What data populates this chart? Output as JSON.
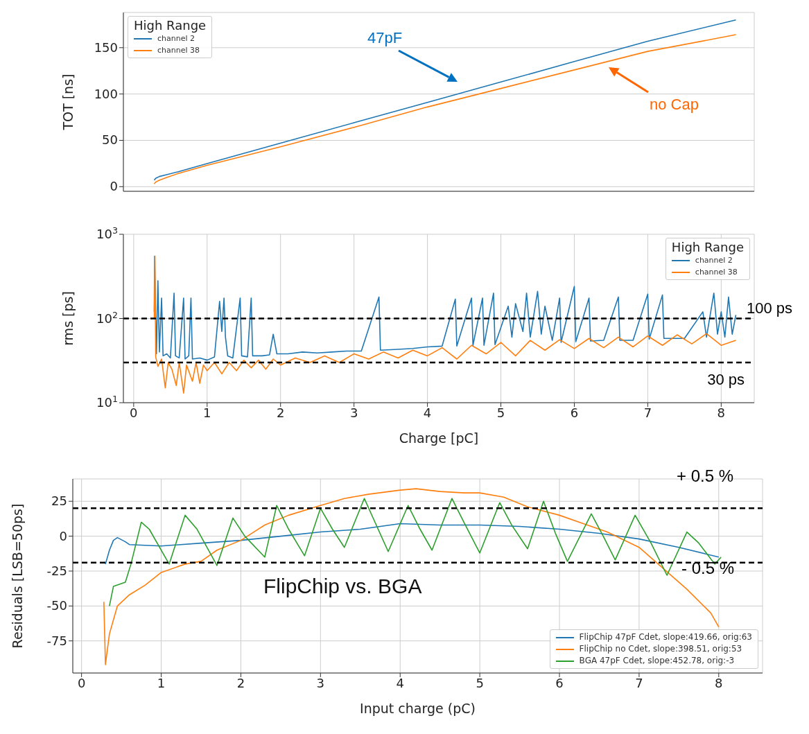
{
  "chart_data": [
    {
      "type": "line",
      "ylabel": "TOT [ns]",
      "legend_title": "High Range",
      "legend": "top left",
      "grid": true,
      "tick_labels": "y",
      "marker": "none",
      "xlim": [
        -0.14,
        8.45
      ],
      "xticks": [
        0,
        1,
        2,
        3,
        4,
        5,
        6,
        7,
        8
      ],
      "ylim": [
        -5,
        188
      ],
      "yticks": [
        0,
        50,
        100,
        150
      ],
      "series": [
        {
          "name": "channel 2",
          "color": "#1f77b4",
          "x": [
            0.28,
            0.3,
            0.35,
            0.45,
            0.6,
            1,
            2,
            3,
            4,
            5,
            6,
            7,
            8.2
          ],
          "values": [
            7,
            9,
            11,
            13,
            16,
            25,
            47,
            69,
            91,
            113,
            135,
            157,
            180
          ]
        },
        {
          "name": "channel 38",
          "color": "#ff7f0e",
          "x": [
            0.28,
            0.3,
            0.35,
            0.45,
            0.6,
            1,
            2,
            3,
            4,
            5,
            6,
            7,
            8.2
          ],
          "values": [
            3,
            5,
            7,
            10,
            14,
            23,
            43,
            64,
            86,
            106,
            126,
            146,
            164
          ]
        }
      ],
      "annotations": [
        "47pF",
        "no Cap"
      ]
    },
    {
      "type": "line",
      "xlabel": "Charge [pC]",
      "ylabel": "rms [ps]",
      "legend_title": "High Range",
      "legend": "top right",
      "grid": true,
      "log": "y",
      "marker": "none",
      "xlim": [
        -0.14,
        8.45
      ],
      "xticks": [
        0,
        1,
        2,
        3,
        4,
        5,
        6,
        7,
        8
      ],
      "ylim": [
        10,
        1000
      ],
      "yticks": [
        {
          "value": 10,
          "label": "10$^{1}$"
        },
        {
          "value": 100,
          "label": "10$^{2}$"
        },
        {
          "value": 1000,
          "label": "10$^{3}$"
        }
      ],
      "series": [
        {
          "name": "channel 2",
          "color": "#1f77b4",
          "x": [
            0.28,
            0.285,
            0.3,
            0.31,
            0.33,
            0.35,
            0.38,
            0.4,
            0.45,
            0.5,
            0.55,
            0.57,
            0.62,
            0.68,
            0.7,
            0.75,
            0.78,
            0.8,
            0.9,
            1.0,
            1.1,
            1.17,
            1.2,
            1.23,
            1.25,
            1.28,
            1.35,
            1.45,
            1.47,
            1.55,
            1.6,
            1.62,
            1.75,
            1.85,
            1.9,
            1.95,
            2.1,
            2.3,
            2.5,
            2.7,
            2.9,
            3.1,
            3.34,
            3.36,
            3.6,
            3.8,
            4.0,
            4.2,
            4.38,
            4.4,
            4.6,
            4.62,
            4.75,
            4.77,
            4.9,
            4.92,
            5.1,
            5.15,
            5.2,
            5.3,
            5.35,
            5.4,
            5.5,
            5.55,
            5.6,
            5.7,
            5.8,
            5.82,
            6.0,
            6.02,
            6.2,
            6.22,
            6.4,
            6.6,
            6.62,
            6.8,
            7.0,
            7.02,
            7.2,
            7.22,
            7.5,
            7.75,
            7.8,
            7.9,
            7.95,
            8.0,
            8.05,
            8.1,
            8.15,
            8.2
          ],
          "values": [
            120,
            550,
            100,
            38,
            280,
            40,
            175,
            36,
            38,
            34,
            200,
            36,
            34,
            175,
            33,
            36,
            175,
            33,
            34,
            32,
            35,
            160,
            70,
            175,
            60,
            36,
            34,
            175,
            36,
            35,
            175,
            36,
            36,
            37,
            65,
            38,
            38,
            40,
            39,
            40,
            41,
            41,
            180,
            42,
            43,
            44,
            46,
            47,
            170,
            47,
            175,
            48,
            175,
            48,
            200,
            49,
            140,
            60,
            150,
            70,
            200,
            60,
            210,
            65,
            140,
            55,
            175,
            52,
            240,
            53,
            175,
            54,
            55,
            180,
            55,
            55,
            195,
            57,
            190,
            58,
            58,
            120,
            60,
            200,
            65,
            120,
            60,
            180,
            65,
            110
          ]
        },
        {
          "name": "channel 38",
          "color": "#ff7f0e",
          "x": [
            0.28,
            0.29,
            0.3,
            0.33,
            0.38,
            0.43,
            0.47,
            0.52,
            0.58,
            0.62,
            0.68,
            0.72,
            0.8,
            0.85,
            0.9,
            0.95,
            1.0,
            1.1,
            1.2,
            1.3,
            1.4,
            1.5,
            1.6,
            1.7,
            1.8,
            1.9,
            2.0,
            2.2,
            2.4,
            2.6,
            2.8,
            3.0,
            3.2,
            3.4,
            3.6,
            3.8,
            4.0,
            4.2,
            4.4,
            4.6,
            4.8,
            5.0,
            5.2,
            5.4,
            5.6,
            5.8,
            6.0,
            6.2,
            6.4,
            6.6,
            6.8,
            7.0,
            7.2,
            7.4,
            7.6,
            7.8,
            8.0,
            8.2
          ],
          "values": [
            100,
            550,
            35,
            27,
            33,
            15,
            30,
            25,
            16,
            30,
            13,
            28,
            18,
            30,
            17,
            28,
            24,
            30,
            22,
            30,
            24,
            32,
            26,
            32,
            25,
            33,
            28,
            34,
            30,
            36,
            30,
            38,
            33,
            40,
            34,
            42,
            36,
            45,
            33,
            48,
            38,
            52,
            36,
            55,
            42,
            56,
            44,
            58,
            45,
            60,
            46,
            62,
            48,
            64,
            50,
            66,
            48,
            55
          ]
        }
      ],
      "ref_lines": [
        {
          "axis": "y",
          "value": 100,
          "label": "100 ps",
          "color": "#000000",
          "line_style": "dashed"
        },
        {
          "axis": "y",
          "value": 30,
          "label": "30 ps",
          "color": "#000000",
          "line_style": "dashed"
        }
      ]
    },
    {
      "type": "line",
      "xlabel": "Input charge (pC)",
      "ylabel": "Residuals [LSB=50ps]",
      "legend": "bottom right",
      "grid": true,
      "marker": "none",
      "xlim": [
        -0.11,
        8.55
      ],
      "xticks": [
        0,
        1,
        2,
        3,
        4,
        5,
        6,
        7,
        8
      ],
      "ylim": [
        -98,
        41
      ],
      "yticks": [
        -75,
        -50,
        -25,
        0,
        25
      ],
      "series": [
        {
          "name": "FlipChip 47pF Cdet, slope:419.66, orig:63",
          "color": "#1f77b4",
          "x": [
            0.3,
            0.35,
            0.4,
            0.45,
            0.55,
            0.6,
            1.0,
            1.5,
            2.0,
            2.5,
            3.0,
            3.5,
            4.0,
            4.5,
            5.0,
            5.5,
            6.0,
            6.5,
            7.0,
            7.5,
            8.0
          ],
          "values": [
            -20,
            -10,
            -3,
            -1,
            -4,
            -6,
            -7,
            -5,
            -3,
            0,
            3,
            5,
            9,
            8,
            8,
            7,
            5,
            2,
            -2,
            -8,
            -15
          ]
        },
        {
          "name": "FlipChip no Cdet, slope:398.51, orig:53",
          "color": "#ff7f0e",
          "x": [
            0.28,
            0.3,
            0.35,
            0.45,
            0.6,
            0.8,
            1.0,
            1.3,
            1.5,
            1.7,
            2.0,
            2.3,
            2.6,
            3.0,
            3.3,
            3.6,
            4.0,
            4.2,
            4.5,
            4.8,
            5.0,
            5.3,
            5.6,
            6.0,
            6.3,
            6.6,
            7.0,
            7.3,
            7.6,
            7.9,
            8.0
          ],
          "values": [
            -47,
            -92,
            -70,
            -50,
            -42,
            -35,
            -26,
            -20,
            -18,
            -10,
            -3,
            8,
            15,
            22,
            27,
            30,
            33,
            34,
            32,
            31,
            31,
            28,
            21,
            15,
            9,
            3,
            -8,
            -23,
            -38,
            -55,
            -65
          ]
        },
        {
          "name": "BGA 47pF Cdet, slope:452.78, orig:-3",
          "color": "#2ca02c",
          "x": [
            0.35,
            0.4,
            0.55,
            0.62,
            0.75,
            0.85,
            1.1,
            1.3,
            1.45,
            1.7,
            1.9,
            2.05,
            2.3,
            2.45,
            2.6,
            2.8,
            3.0,
            3.15,
            3.3,
            3.55,
            3.7,
            3.85,
            4.1,
            4.25,
            4.4,
            4.65,
            4.8,
            5.0,
            5.25,
            5.4,
            5.6,
            5.8,
            5.95,
            6.1,
            6.4,
            6.55,
            6.7,
            6.95,
            7.15,
            7.35,
            7.6,
            7.75,
            7.95,
            8.03
          ],
          "values": [
            -50,
            -36,
            -33,
            -20,
            10,
            5,
            -20,
            15,
            5,
            -21,
            13,
            0,
            -15,
            22,
            5,
            -14,
            20,
            5,
            -8,
            27,
            8,
            -11,
            22,
            5,
            -10,
            27,
            10,
            -12,
            24,
            8,
            -9,
            25,
            2,
            -18,
            16,
            0,
            -17,
            15,
            -5,
            -28,
            3,
            -5,
            -20,
            -15
          ]
        }
      ],
      "ref_lines": [
        {
          "axis": "y",
          "value": 20,
          "color": "#000000",
          "line_style": "dashed"
        },
        {
          "axis": "y",
          "value": -19,
          "color": "#000000",
          "line_style": "dashed"
        }
      ],
      "annotations": [
        "FlipChip vs. BGA",
        "+ 0.5 %",
        "- 0.5 %"
      ]
    }
  ]
}
